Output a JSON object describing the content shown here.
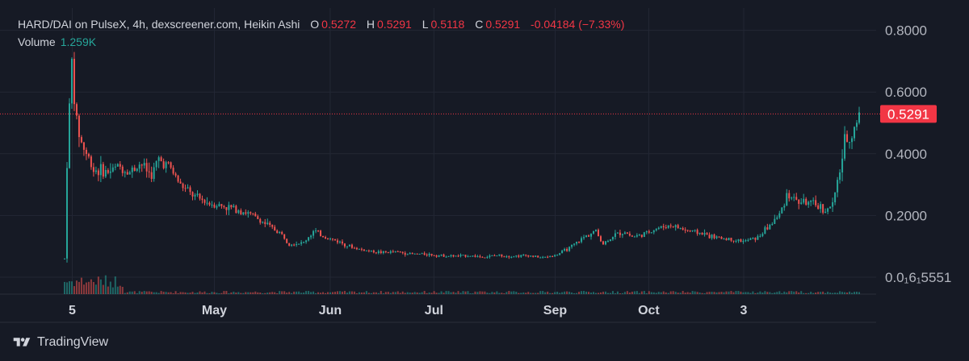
{
  "legend": {
    "symbol": "HARD/DAI on PulseX, 4h, dexscreener.com, Heikin Ashi",
    "o_label": "O",
    "o_value": "0.5272",
    "h_label": "H",
    "h_value": "0.5291",
    "l_label": "L",
    "l_value": "0.5118",
    "c_label": "C",
    "c_value": "0.5291",
    "change": "-0.04184 (−7.33%)",
    "volume_label": "Volume",
    "volume_value": "1.259K"
  },
  "brand": {
    "name": "TradingView",
    "icon": "tradingview-logo-icon"
  },
  "colors": {
    "background": "#161a25",
    "up": "#26a69a",
    "down": "#ef5350",
    "grid": "#232734",
    "price_line": "#f23645"
  },
  "chart_data": {
    "type": "candlestick",
    "title": "HARD/DAI on PulseX, 4h, dexscreener.com, Heikin Ashi",
    "y_ticks": [
      "0.8000",
      "0.6000",
      "0.4000",
      "0.2000",
      "0.0₁6₁5551"
    ],
    "y_tick_values": [
      0.8,
      0.6,
      0.4,
      0.2,
      0.0
    ],
    "x_ticks": [
      "5",
      "May",
      "Jun",
      "Jul",
      "Sep",
      "Oct",
      "3"
    ],
    "ylim": [
      -0.055,
      0.82
    ],
    "grid": true,
    "last_price": 0.5291,
    "last_price_label": "0.5291",
    "series_close_keypoints": [
      [
        0.0,
        0.06
      ],
      [
        0.008,
        0.43
      ],
      [
        0.02,
        0.7
      ],
      [
        0.03,
        0.52
      ],
      [
        0.045,
        0.44
      ],
      [
        0.08,
        0.35
      ],
      [
        0.12,
        0.34
      ],
      [
        0.15,
        0.36
      ],
      [
        0.18,
        0.34
      ],
      [
        0.21,
        0.37
      ],
      [
        0.24,
        0.33
      ],
      [
        0.26,
        0.38
      ],
      [
        0.29,
        0.36
      ],
      [
        0.32,
        0.3
      ],
      [
        0.36,
        0.26
      ],
      [
        0.4,
        0.24
      ],
      [
        0.44,
        0.23
      ],
      [
        0.48,
        0.22
      ],
      [
        0.52,
        0.2
      ],
      [
        0.56,
        0.17
      ],
      [
        0.6,
        0.14
      ],
      [
        0.62,
        0.11
      ],
      [
        0.66,
        0.11
      ],
      [
        0.69,
        0.15
      ],
      [
        0.72,
        0.13
      ],
      [
        0.76,
        0.115
      ],
      [
        0.8,
        0.095
      ],
      [
        0.84,
        0.085
      ],
      [
        0.88,
        0.08
      ],
      [
        0.92,
        0.082
      ],
      [
        0.96,
        0.075
      ],
      [
        1.0,
        0.075
      ],
      [
        1.04,
        0.07
      ],
      [
        1.08,
        0.068
      ],
      [
        1.12,
        0.07
      ],
      [
        1.16,
        0.065
      ],
      [
        1.2,
        0.071
      ],
      [
        1.24,
        0.068
      ],
      [
        1.28,
        0.071
      ],
      [
        1.32,
        0.063
      ],
      [
        1.36,
        0.071
      ],
      [
        1.4,
        0.096
      ],
      [
        1.44,
        0.131
      ],
      [
        1.47,
        0.151
      ],
      [
        1.49,
        0.107
      ],
      [
        1.52,
        0.135
      ],
      [
        1.55,
        0.148
      ],
      [
        1.57,
        0.131
      ],
      [
        1.6,
        0.137
      ],
      [
        1.64,
        0.159
      ],
      [
        1.68,
        0.168
      ],
      [
        1.72,
        0.152
      ],
      [
        1.76,
        0.143
      ],
      [
        1.8,
        0.129
      ],
      [
        1.84,
        0.123
      ],
      [
        1.88,
        0.116
      ],
      [
        1.92,
        0.129
      ],
      [
        1.95,
        0.166
      ],
      [
        1.98,
        0.203
      ],
      [
        2.0,
        0.272
      ],
      [
        2.03,
        0.245
      ],
      [
        2.06,
        0.241
      ],
      [
        2.09,
        0.228
      ],
      [
        2.11,
        0.214
      ],
      [
        2.13,
        0.244
      ],
      [
        2.16,
        0.436
      ],
      [
        2.18,
        0.464
      ],
      [
        2.2,
        0.529
      ]
    ]
  }
}
